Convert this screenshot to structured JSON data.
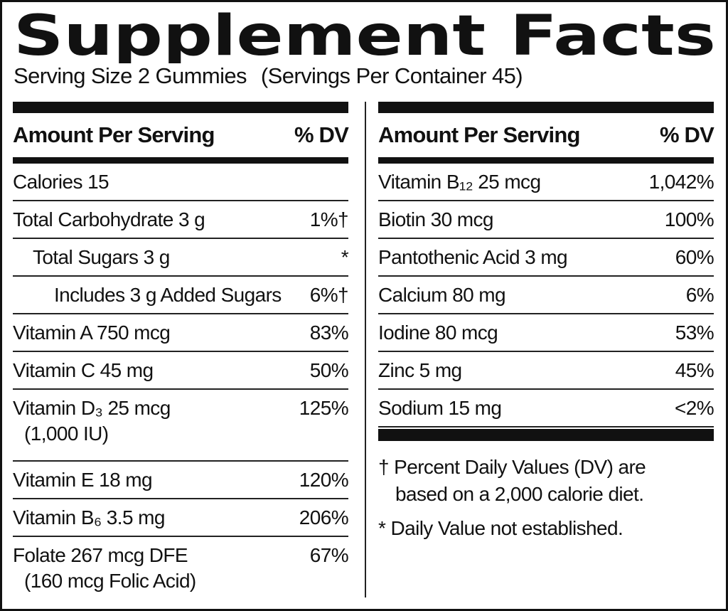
{
  "title": "Supplement Facts",
  "serving_size": "Serving Size 2 Gummies",
  "servings_per_container": "(Servings Per Container 45)",
  "left": {
    "header": {
      "amount": "Amount Per Serving",
      "dv": "% DV"
    },
    "rows": [
      {
        "name": "Calories 15"
      },
      {
        "name": "Total Carbohydrate 3 g",
        "dv": "1%†"
      },
      {
        "name": "Total Sugars 3 g",
        "dv": "*"
      },
      {
        "name": "Includes 3 g Added Sugars",
        "dv": "6%†"
      },
      {
        "name": "Vitamin A 750 mcg",
        "dv": "83%"
      },
      {
        "name": "Vitamin C 45 mg",
        "dv": "50%"
      },
      {
        "name": "Vitamin D₃ 25 mcg",
        "note": "(1,000 IU)",
        "dv": "125%"
      },
      {
        "name": "Vitamin E 18 mg",
        "dv": "120%"
      },
      {
        "name": "Vitamin B₆ 3.5 mg",
        "dv": "206%"
      },
      {
        "name": "Folate 267 mcg DFE",
        "note": "(160 mcg Folic Acid)",
        "dv": "67%"
      }
    ]
  },
  "right": {
    "header": {
      "amount": "Amount Per Serving",
      "dv": "% DV"
    },
    "rows": [
      {
        "name": "Vitamin B₁₂ 25 mcg",
        "dv": "1,042%"
      },
      {
        "name": "Biotin 30 mcg",
        "dv": "100%"
      },
      {
        "name": "Pantothenic Acid 3 mg",
        "dv": "60%"
      },
      {
        "name": "Calcium 80 mg",
        "dv": "6%"
      },
      {
        "name": "Iodine 80 mcg",
        "dv": "53%"
      },
      {
        "name": "Zinc 5 mg",
        "dv": "45%"
      },
      {
        "name": "Sodium 15 mg",
        "dv": "<2%"
      }
    ]
  },
  "footnotes": [
    "† Percent Daily Values (DV) are based on a 2,000 calorie diet.",
    "* Daily Value not established."
  ]
}
